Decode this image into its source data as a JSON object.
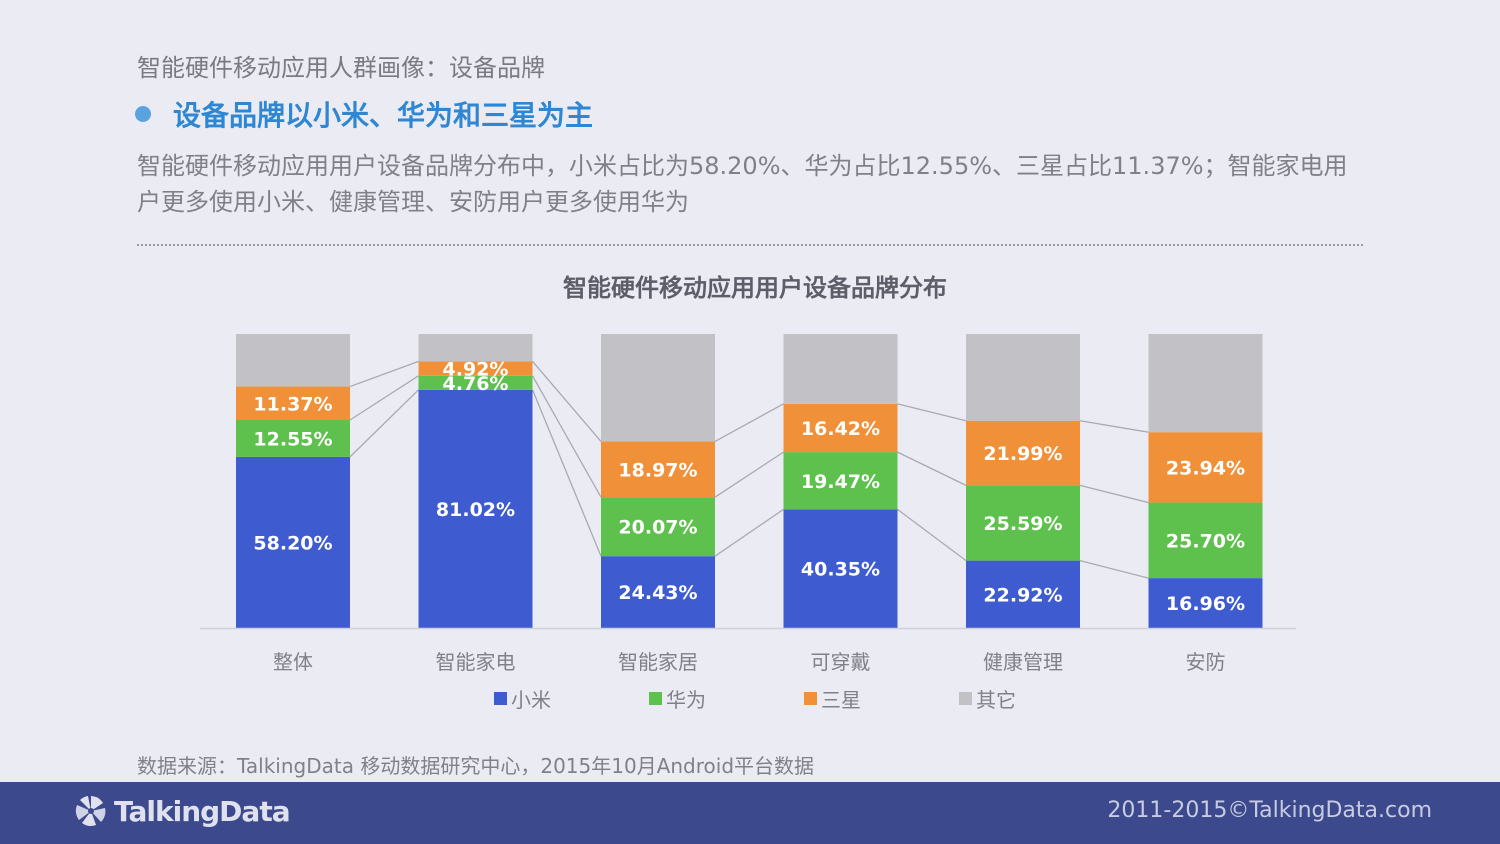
{
  "page": {
    "top_title": "智能硬件移动应用人群画像：设备品牌",
    "headline": "设备品牌以小米、华为和三星为主",
    "description": "智能硬件移动应用用户设备品牌分布中，小米占比为58.20%、华为占比12.55%、三星占比11.37%；智能家电用户更多使用小米、健康管理、安防用户更多使用华为",
    "chart_title": "智能硬件移动应用用户设备品牌分布",
    "source": "数据来源：TalkingData 移动数据研究中心，2015年10月Android平台数据",
    "footer_logo": "TalkingData",
    "footer_copyright": "2011-2015©TalkingData.com"
  },
  "colors": {
    "xiaomi": "#3f5bd0",
    "huawei": "#5ec14e",
    "samsung": "#f0913a",
    "other": "#c1c1c6",
    "headline": "#2f86d3",
    "footer": "#3c4a8d"
  },
  "chart_data": {
    "type": "bar",
    "stacked": true,
    "percent": true,
    "title": "智能硬件移动应用用户设备品牌分布",
    "categories": [
      "整体",
      "智能家电",
      "智能家居",
      "可穿戴",
      "健康管理",
      "安防"
    ],
    "series": [
      {
        "name": "小米",
        "values": [
          58.2,
          81.02,
          24.43,
          40.35,
          22.92,
          16.96
        ],
        "labels": [
          "58.20%",
          "81.02%",
          "24.43%",
          "40.35%",
          "22.92%",
          "16.96%"
        ]
      },
      {
        "name": "华为",
        "values": [
          12.55,
          4.76,
          20.07,
          19.47,
          25.59,
          25.7
        ],
        "labels": [
          "12.55%",
          "4.76%",
          "20.07%",
          "19.47%",
          "25.59%",
          "25.70%"
        ]
      },
      {
        "name": "三星",
        "values": [
          11.37,
          4.92,
          18.97,
          16.42,
          21.99,
          23.94
        ],
        "labels": [
          "11.37%",
          "4.92%",
          "18.97%",
          "16.42%",
          "21.99%",
          "23.94%"
        ]
      },
      {
        "name": "其它",
        "values": [
          17.88,
          9.3,
          36.53,
          23.76,
          29.5,
          33.4
        ],
        "labels": []
      }
    ],
    "ylim": [
      0,
      100
    ],
    "legend_position": "bottom",
    "grid": false,
    "series_lines": true
  }
}
